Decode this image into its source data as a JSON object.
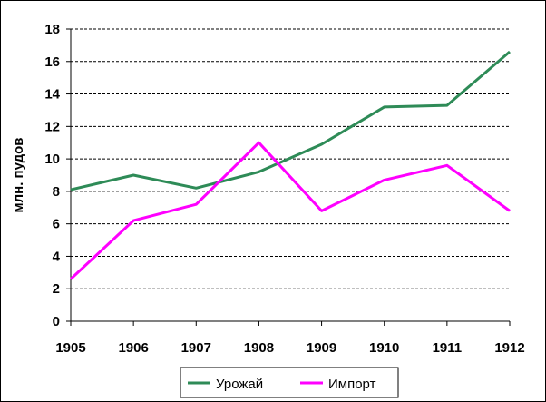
{
  "chart_data": {
    "type": "line",
    "title": "",
    "xlabel": "",
    "ylabel": "млн. пудов",
    "x": [
      "1905",
      "1906",
      "1907",
      "1908",
      "1909",
      "1910",
      "1911",
      "1912"
    ],
    "ylim": [
      0,
      18
    ],
    "yticks": [
      0,
      2,
      4,
      6,
      8,
      10,
      12,
      14,
      16,
      18
    ],
    "grid": "horizontal dashed",
    "legend_position": "bottom",
    "series": [
      {
        "name": "Урожай",
        "color": "#2e8b57",
        "values": [
          8.1,
          9.0,
          8.2,
          9.2,
          10.9,
          13.2,
          13.3,
          16.6
        ]
      },
      {
        "name": "Импорт",
        "color": "#ff00ff",
        "values": [
          2.6,
          6.2,
          7.2,
          11.0,
          6.8,
          8.7,
          9.6,
          6.8
        ]
      }
    ]
  }
}
